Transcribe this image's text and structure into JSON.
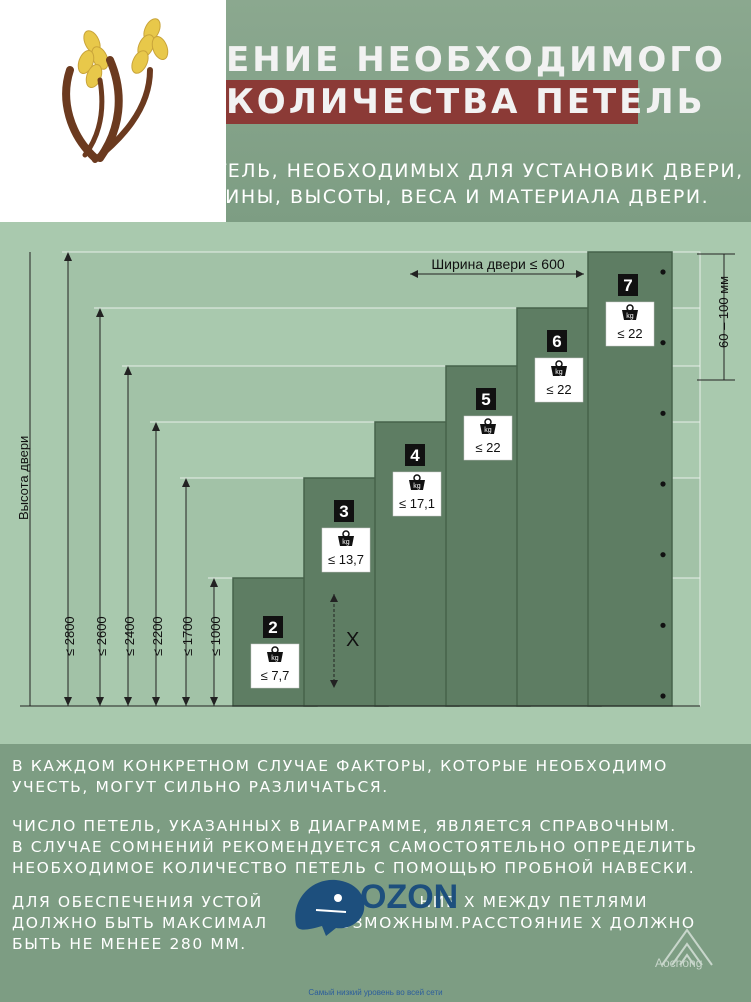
{
  "header": {
    "title_line1": "ЕНИЕ НЕОБХОДИМОГО",
    "title_line2": "КОЛИЧЕСТВА ПЕТЕЛЬ"
  },
  "intro": {
    "line1": "КОЛИЧЕСТВО ПЕТЕЛЬ, НЕОБХОДИМЫХ ДЛЯ УСТАНОВИК ДВЕРИ,",
    "line2": "ЗАВИСИТ ОТ ШИРИНЫ, ВЫСОТЫ, ВЕСА И МАТЕРИАЛА ДВЕРИ."
  },
  "diagram": {
    "width_label": "Ширина двери ≤ 600",
    "height_axis_label": "Высота двери",
    "gap_label": "60 – 100 мм",
    "x_label": "X",
    "kg_label": "kg",
    "colors": {
      "door": "#5e7d63",
      "door_edge": "#46634b",
      "bg": "#a9c9ae",
      "badge": "#111111"
    },
    "doors": [
      {
        "hinges": "2",
        "height": "≤ 1000",
        "weight": "≤ 7,7"
      },
      {
        "hinges": "3",
        "height": "≤ 1700",
        "weight": "≤ 13,7"
      },
      {
        "hinges": "4",
        "height": "≤ 2200",
        "weight": "≤ 17,1"
      },
      {
        "hinges": "5",
        "height": "≤ 2400",
        "weight": "≤ 22"
      },
      {
        "hinges": "6",
        "height": "≤ 2600",
        "weight": "≤ 22"
      },
      {
        "hinges": "7",
        "height": "≤ 2800",
        "weight": "≤ 22"
      }
    ]
  },
  "notes": {
    "p1_line1": "В КАЖДОМ КОНКРЕТНОМ СЛУЧАЕ ФАКТОРЫ, КОТОРЫЕ НЕОБХОДИМО",
    "p1_line2": "УЧЕСТЬ, МОГУТ СИЛЬНО РАЗЛИЧАТЬСЯ.",
    "p2_line1": "ЧИСЛО ПЕТЕЛЬ, УКАЗАННЫХ В ДИАГРАММЕ, ЯВЛЯЕТСЯ СПРАВОЧНЫМ.",
    "p2_line2": "В СЛУЧАЕ СОМНЕНИЙ РЕКОМЕНДУЕТСЯ САМОСТОЯТЕЛЬНО ОПРЕДЕЛИТЬ",
    "p2_line3": "НЕОБХОДИМОЕ КОЛИЧЕСТВО ПЕТЕЛЬ С ПОМОЩЬЮ ПРОБНОЙ НАВЕСКИ.",
    "p3_line1": "ДЛЯ ОБЕСПЕЧЕНИЯ УСТОЙ                        НИЕ X МЕЖДУ ПЕТЛЯМИ",
    "p3_line2": "ДОЛЖНО БЫТЬ МАКСИМАЛ         ВОЗМОЖНЫМ.РАССТОЯНИЕ X ДОЛЖНО",
    "p3_line3": "БЫТЬ НЕ МЕНЕЕ 280 ММ."
  },
  "watermarks": {
    "ozon": "OZON",
    "aochong": "Aochong",
    "footer": "Самый низкий уровень во всей сети"
  }
}
